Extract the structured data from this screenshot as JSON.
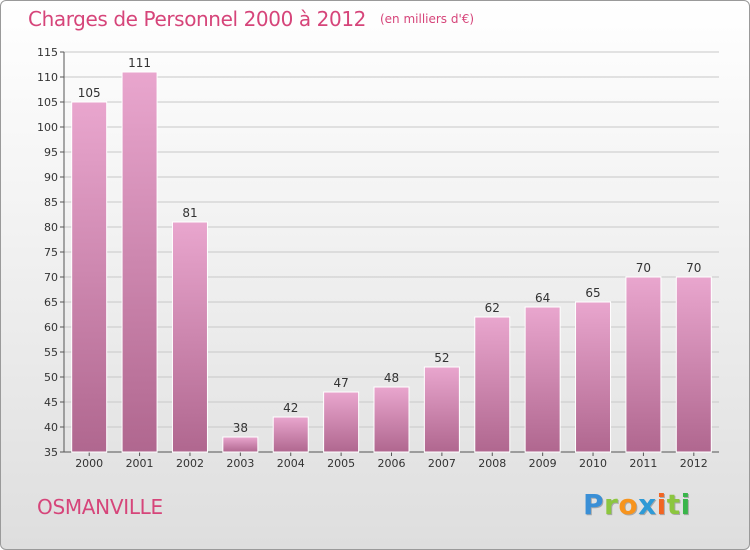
{
  "header": {
    "title": "Charges de Personnel 2000 à 2012",
    "unit": "(en milliers d'€)"
  },
  "footer": {
    "commune": "OSMANVILLE",
    "logo_text": "Proxiti",
    "logo_letters": [
      "P",
      "r",
      "o",
      "x",
      "i",
      "t",
      "i"
    ]
  },
  "colors": {
    "bar_light": "#e9a6ce",
    "bar_dark": "#b0678f",
    "title": "#d6457a",
    "grid": "#c8c8c8"
  },
  "chart_data": {
    "type": "bar",
    "title": "Charges de Personnel 2000 à 2012",
    "subtitle": "(en milliers d'€)",
    "xlabel": "",
    "ylabel": "",
    "categories": [
      "2000",
      "2001",
      "2002",
      "2003",
      "2004",
      "2005",
      "2006",
      "2007",
      "2008",
      "2009",
      "2010",
      "2011",
      "2012"
    ],
    "values": [
      105,
      111,
      81,
      38,
      42,
      47,
      48,
      52,
      62,
      64,
      65,
      70,
      70
    ],
    "ylim": [
      35,
      115
    ],
    "yticks": [
      35,
      40,
      45,
      50,
      55,
      60,
      65,
      70,
      75,
      80,
      85,
      90,
      95,
      100,
      105,
      110,
      115
    ],
    "grid": true,
    "data_labels": true
  }
}
